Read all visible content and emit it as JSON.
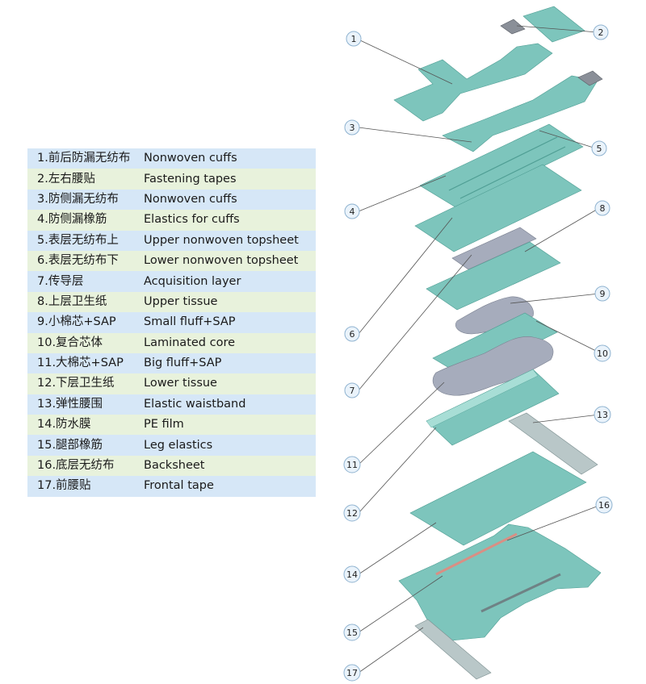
{
  "legend": [
    {
      "cn": "1.前后防漏无纺布",
      "en": "Nonwoven cuffs"
    },
    {
      "cn": "2.左右腰贴",
      "en": "Fastening tapes"
    },
    {
      "cn": "3.防侧漏无纺布",
      "en": "Nonwoven cuffs"
    },
    {
      "cn": "4.防侧漏橡筋",
      "en": "Elastics for cuffs"
    },
    {
      "cn": "5.表层无纺布上",
      "en": "Upper nonwoven topsheet"
    },
    {
      "cn": "6.表层无纺布下",
      "en": "Lower nonwoven topsheet"
    },
    {
      "cn": "7.传导层",
      "en": "Acquisition layer"
    },
    {
      "cn": "8.上层卫生纸",
      "en": "Upper tissue"
    },
    {
      "cn": "9.小棉芯+SAP",
      "en": "Small fluff+SAP"
    },
    {
      "cn": "10.复合芯体",
      "en": "Laminated core"
    },
    {
      "cn": "11.大棉芯+SAP",
      "en": "Big fluff+SAP"
    },
    {
      "cn": "12.下层卫生纸",
      "en": "Lower tissue"
    },
    {
      "cn": "13.弹性腰围",
      "en": "Elastic waistband"
    },
    {
      "cn": "14.防水膜",
      "en": "PE film"
    },
    {
      "cn": "15.腿部橡筋",
      "en": "Leg elastics"
    },
    {
      "cn": "16.底层无纺布",
      "en": "Backsheet"
    },
    {
      "cn": "17.前腰贴",
      "en": "Frontal tape"
    }
  ],
  "callouts": [
    "1",
    "2",
    "3",
    "4",
    "5",
    "6",
    "7",
    "8",
    "9",
    "10",
    "11",
    "12",
    "13",
    "14",
    "15",
    "16",
    "17"
  ],
  "colors": {
    "layer_teal": "#7dc5bc",
    "layer_edge": "#4f9e94",
    "layer_gray": "#a6acbc",
    "elastic_pink": "#d98f84",
    "tape_gray": "#b9c7c8",
    "legend_blue": "#d6e7f7",
    "legend_green": "#e8f2dc"
  }
}
